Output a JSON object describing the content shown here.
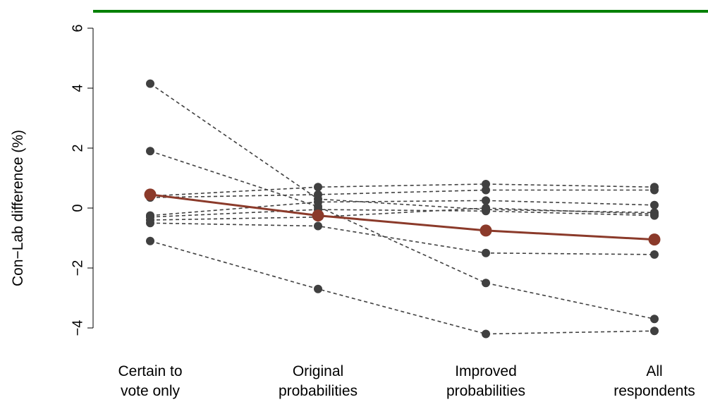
{
  "chart_data": {
    "type": "line",
    "categories": [
      [
        "Certain to",
        "vote only"
      ],
      [
        "Original",
        "probabilities"
      ],
      [
        "Improved",
        "probabilities"
      ],
      [
        "All",
        "respondents"
      ]
    ],
    "ylabel": "Con−Lab difference (%)",
    "xlabel": "",
    "ylim": [
      -4.3,
      6.0
    ],
    "yticks": [
      -4,
      -2,
      0,
      2,
      4,
      6
    ],
    "reference_line": {
      "y": 6.5,
      "color": "#008000"
    },
    "series": [
      {
        "values": [
          4.15,
          0.3,
          -0.05,
          -0.15
        ]
      },
      {
        "values": [
          1.9,
          0.05,
          -2.5,
          -3.7
        ]
      },
      {
        "values": [
          0.4,
          0.7,
          0.8,
          0.7
        ]
      },
      {
        "values": [
          0.35,
          0.45,
          0.6,
          0.6
        ]
      },
      {
        "values": [
          -0.25,
          0.2,
          0.25,
          0.1
        ]
      },
      {
        "values": [
          -0.3,
          -0.05,
          -0.1,
          -0.25
        ]
      },
      {
        "values": [
          -0.4,
          -0.3,
          0.0,
          -0.2
        ]
      },
      {
        "values": [
          -0.5,
          -0.6,
          -1.5,
          -1.55
        ]
      },
      {
        "values": [
          -1.1,
          -2.7,
          -4.2,
          -4.1
        ]
      }
    ],
    "average": {
      "values": [
        0.45,
        -0.25,
        -0.75,
        -1.05
      ],
      "color": "#8B3A2A"
    },
    "point_color": "#404040",
    "grid": false
  }
}
